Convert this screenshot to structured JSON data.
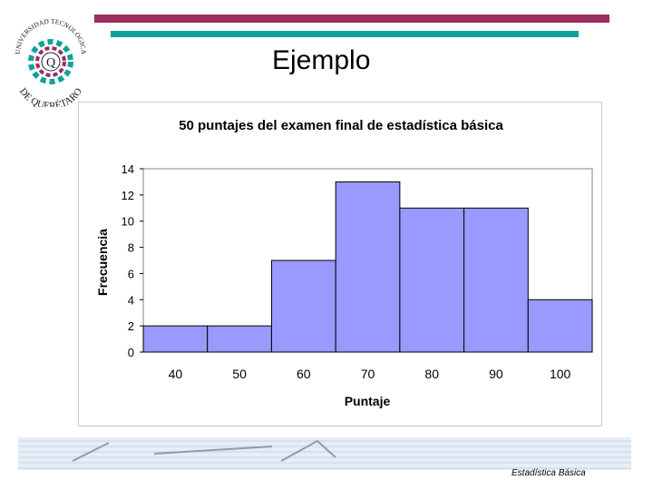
{
  "slide": {
    "title": "Ejemplo",
    "footer": "Estadística Básica"
  },
  "logo": {
    "text_top": "UNIVERSIDAD TECNOLÓGICA",
    "text_bottom": "DE QUERÉTARO",
    "letter": "Q"
  },
  "colors": {
    "purple_bar": "#9b2d5f",
    "teal_bar": "#12a19a",
    "bar_fill": "#9999ff"
  },
  "chart_data": {
    "type": "bar",
    "title": "50 puntajes del examen final de estadística básica",
    "xlabel": "Puntaje",
    "ylabel": "Frecuencia",
    "categories": [
      "40",
      "50",
      "60",
      "70",
      "80",
      "90",
      "100"
    ],
    "values": [
      2,
      2,
      7,
      13,
      11,
      11,
      4
    ],
    "ylim": [
      0,
      14
    ],
    "yticks": [
      0,
      2,
      4,
      6,
      8,
      10,
      12,
      14
    ],
    "grid": false,
    "legend": "none"
  }
}
